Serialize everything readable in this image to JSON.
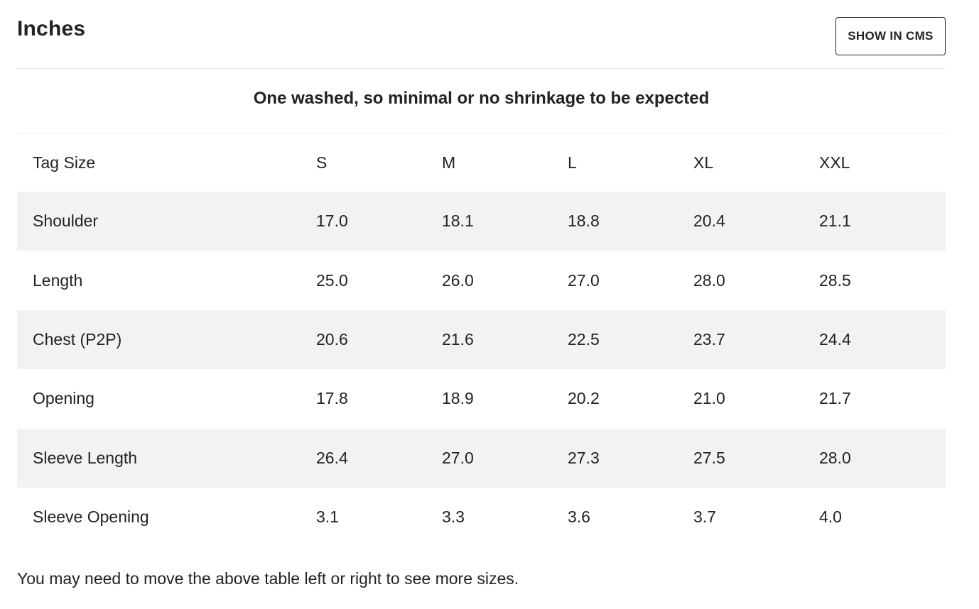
{
  "header": {
    "title": "Inches",
    "cms_button_label": "SHOW IN CMS"
  },
  "note": "One washed, so minimal or no shrinkage to be expected",
  "table": {
    "columns": [
      "Tag Size",
      "S",
      "M",
      "L",
      "XL",
      "XXL"
    ],
    "rows": [
      {
        "label": "Shoulder",
        "values": [
          "17.0",
          "18.1",
          "18.8",
          "20.4",
          "21.1"
        ]
      },
      {
        "label": "Length",
        "values": [
          "25.0",
          "26.0",
          "27.0",
          "28.0",
          "28.5"
        ]
      },
      {
        "label": "Chest (P2P)",
        "values": [
          "20.6",
          "21.6",
          "22.5",
          "23.7",
          "24.4"
        ]
      },
      {
        "label": "Opening",
        "values": [
          "17.8",
          "18.9",
          "20.2",
          "21.0",
          "21.7"
        ]
      },
      {
        "label": "Sleeve Length",
        "values": [
          "26.4",
          "27.0",
          "27.3",
          "27.5",
          "28.0"
        ]
      },
      {
        "label": "Sleeve Opening",
        "values": [
          "3.1",
          "3.3",
          "3.6",
          "3.7",
          "4.0"
        ]
      }
    ]
  },
  "footer": {
    "hint": "You may need to move the above table left or right to see more sizes."
  },
  "colors": {
    "text": "#222222",
    "row_stripe": "#f2f2f2",
    "divider": "#ececec",
    "button_border": "#222222"
  }
}
